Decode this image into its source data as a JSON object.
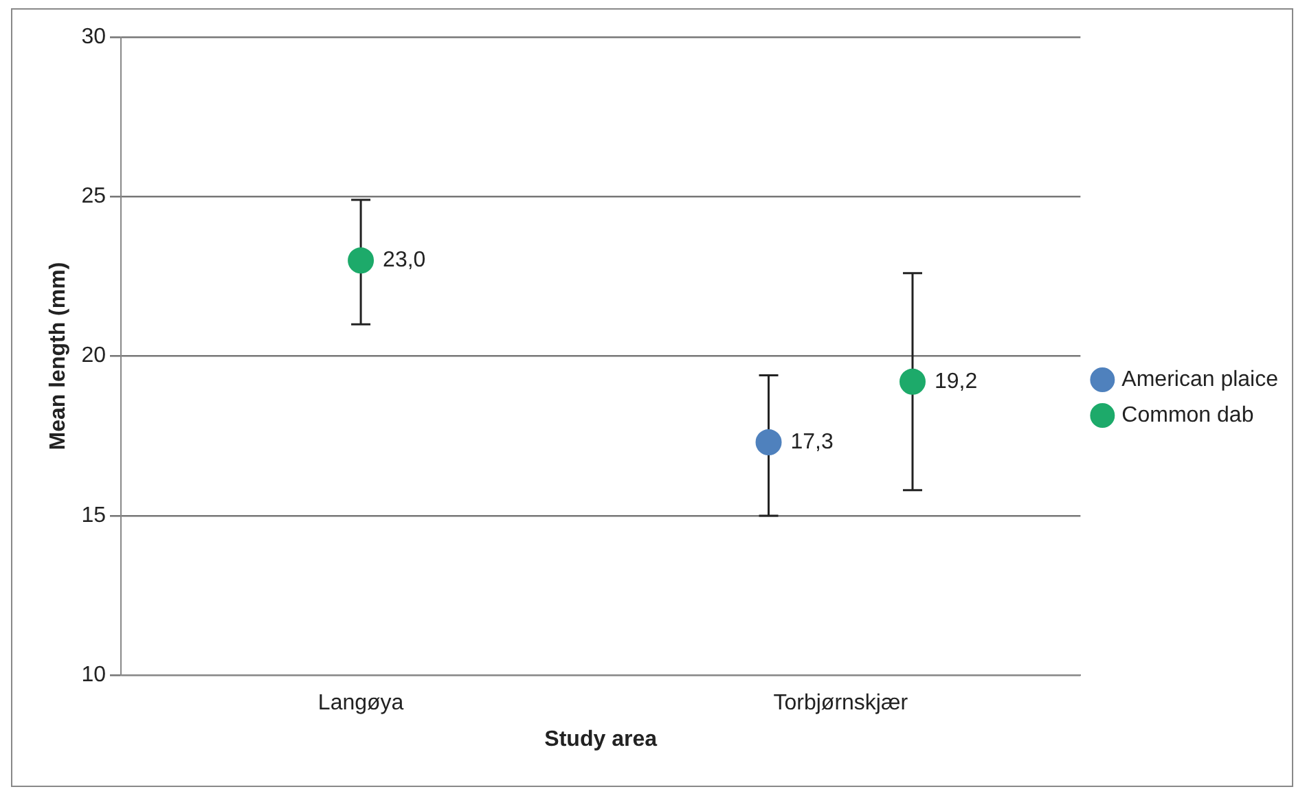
{
  "chart_data": {
    "type": "scatter",
    "xlabel": "Study area",
    "ylabel": "Mean length (mm)",
    "categories": [
      "Langøya",
      "Torbjørnskjær"
    ],
    "series": [
      {
        "name": "American plaice",
        "color": "#4f81bd",
        "values": [
          null,
          17.3
        ],
        "errors": [
          null,
          [
            15.0,
            19.4
          ]
        ],
        "value_labels": [
          null,
          "17,3"
        ]
      },
      {
        "name": "Common dab",
        "color": "#1daa6a",
        "values": [
          23.0,
          19.2
        ],
        "errors": [
          [
            21.0,
            24.9
          ],
          [
            15.8,
            22.6
          ]
        ],
        "value_labels": [
          "23,0",
          "19,2"
        ]
      }
    ],
    "ylim": [
      10,
      30
    ],
    "yticks": [
      10,
      15,
      20,
      25,
      30
    ],
    "grid": "y",
    "legend": "right",
    "marker": "circle"
  }
}
